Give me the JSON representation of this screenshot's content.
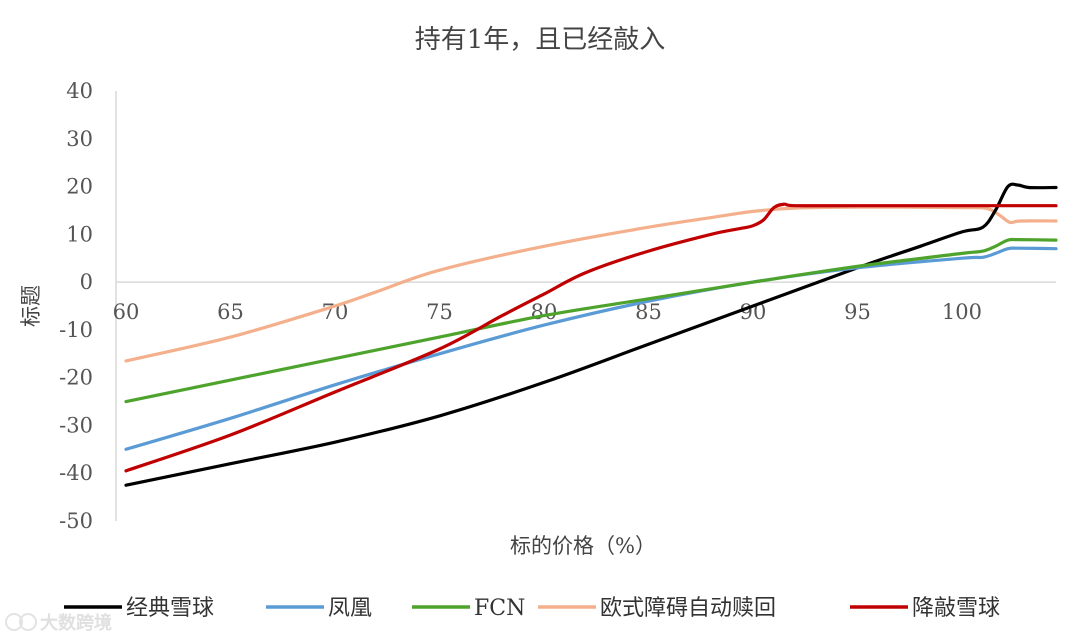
{
  "chart_data": {
    "type": "line",
    "title": "持有1年，且已经敲入",
    "xlabel": "标的价格（%）",
    "ylabel": "标题",
    "xlim": [
      60,
      104.5
    ],
    "ylim": [
      -50,
      40
    ],
    "xticks": [
      60,
      65,
      70,
      75,
      80,
      85,
      90,
      95,
      100
    ],
    "yticks": [
      40,
      30,
      20,
      10,
      0,
      -10,
      -20,
      -30,
      -40,
      -50
    ],
    "grid": false,
    "legend_position": "bottom",
    "series": [
      {
        "name": "经典雪球",
        "color": "#000000",
        "points": [
          [
            60,
            -42.5
          ],
          [
            65,
            -38
          ],
          [
            70,
            -33.5
          ],
          [
            75,
            -28
          ],
          [
            80,
            -21
          ],
          [
            85,
            -13
          ],
          [
            90,
            -5
          ],
          [
            95,
            3
          ],
          [
            98,
            7.5
          ],
          [
            100,
            10.5
          ],
          [
            101,
            11.5
          ],
          [
            101.6,
            15
          ],
          [
            102.2,
            20
          ],
          [
            102.7,
            20.3
          ],
          [
            103.2,
            19.8
          ],
          [
            104.5,
            19.8
          ]
        ]
      },
      {
        "name": "凤凰",
        "color": "#5b9bd5",
        "points": [
          [
            60,
            -35
          ],
          [
            65,
            -28.5
          ],
          [
            70,
            -21.5
          ],
          [
            75,
            -15
          ],
          [
            80,
            -9
          ],
          [
            85,
            -4
          ],
          [
            90,
            0
          ],
          [
            95,
            3
          ],
          [
            100,
            5
          ],
          [
            101,
            5.2
          ],
          [
            101.6,
            6
          ],
          [
            102.2,
            7
          ],
          [
            102.7,
            7.1
          ],
          [
            104.5,
            7
          ]
        ]
      },
      {
        "name": "FCN",
        "color": "#4ea32c",
        "points": [
          [
            60,
            -25
          ],
          [
            65,
            -20.5
          ],
          [
            70,
            -16
          ],
          [
            75,
            -11.5
          ],
          [
            80,
            -7
          ],
          [
            85,
            -3.5
          ],
          [
            90,
            0
          ],
          [
            95,
            3.3
          ],
          [
            100,
            6
          ],
          [
            101,
            6.5
          ],
          [
            101.6,
            7.5
          ],
          [
            102.2,
            8.8
          ],
          [
            102.7,
            8.9
          ],
          [
            104.5,
            8.8
          ]
        ]
      },
      {
        "name": "欧式障碍自动赎回",
        "color": "#f4b08c",
        "points": [
          [
            60,
            -16.5
          ],
          [
            65,
            -11.5
          ],
          [
            70,
            -5
          ],
          [
            72,
            -2
          ],
          [
            75,
            2.5
          ],
          [
            80,
            7.5
          ],
          [
            85,
            11.5
          ],
          [
            88,
            13.5
          ],
          [
            90,
            14.8
          ],
          [
            92,
            15.5
          ],
          [
            95,
            15.7
          ],
          [
            100,
            15.6
          ],
          [
            101.2,
            15.4
          ],
          [
            101.8,
            14
          ],
          [
            102.3,
            12.5
          ],
          [
            102.8,
            12.8
          ],
          [
            104.5,
            12.8
          ]
        ]
      },
      {
        "name": "降敲雪球",
        "color": "#c00000",
        "points": [
          [
            60,
            -39.5
          ],
          [
            65,
            -32
          ],
          [
            70,
            -23
          ],
          [
            75,
            -14
          ],
          [
            78,
            -7
          ],
          [
            80,
            -2.5
          ],
          [
            82,
            2
          ],
          [
            85,
            6.5
          ],
          [
            88,
            10
          ],
          [
            89.5,
            11.3
          ],
          [
            90,
            11.8
          ],
          [
            90.5,
            13
          ],
          [
            91.0,
            15.6
          ],
          [
            91.5,
            16.3
          ],
          [
            92,
            16
          ],
          [
            95,
            16
          ],
          [
            100,
            16
          ],
          [
            104.5,
            16
          ]
        ]
      }
    ]
  },
  "watermark_text": "大数跨境"
}
